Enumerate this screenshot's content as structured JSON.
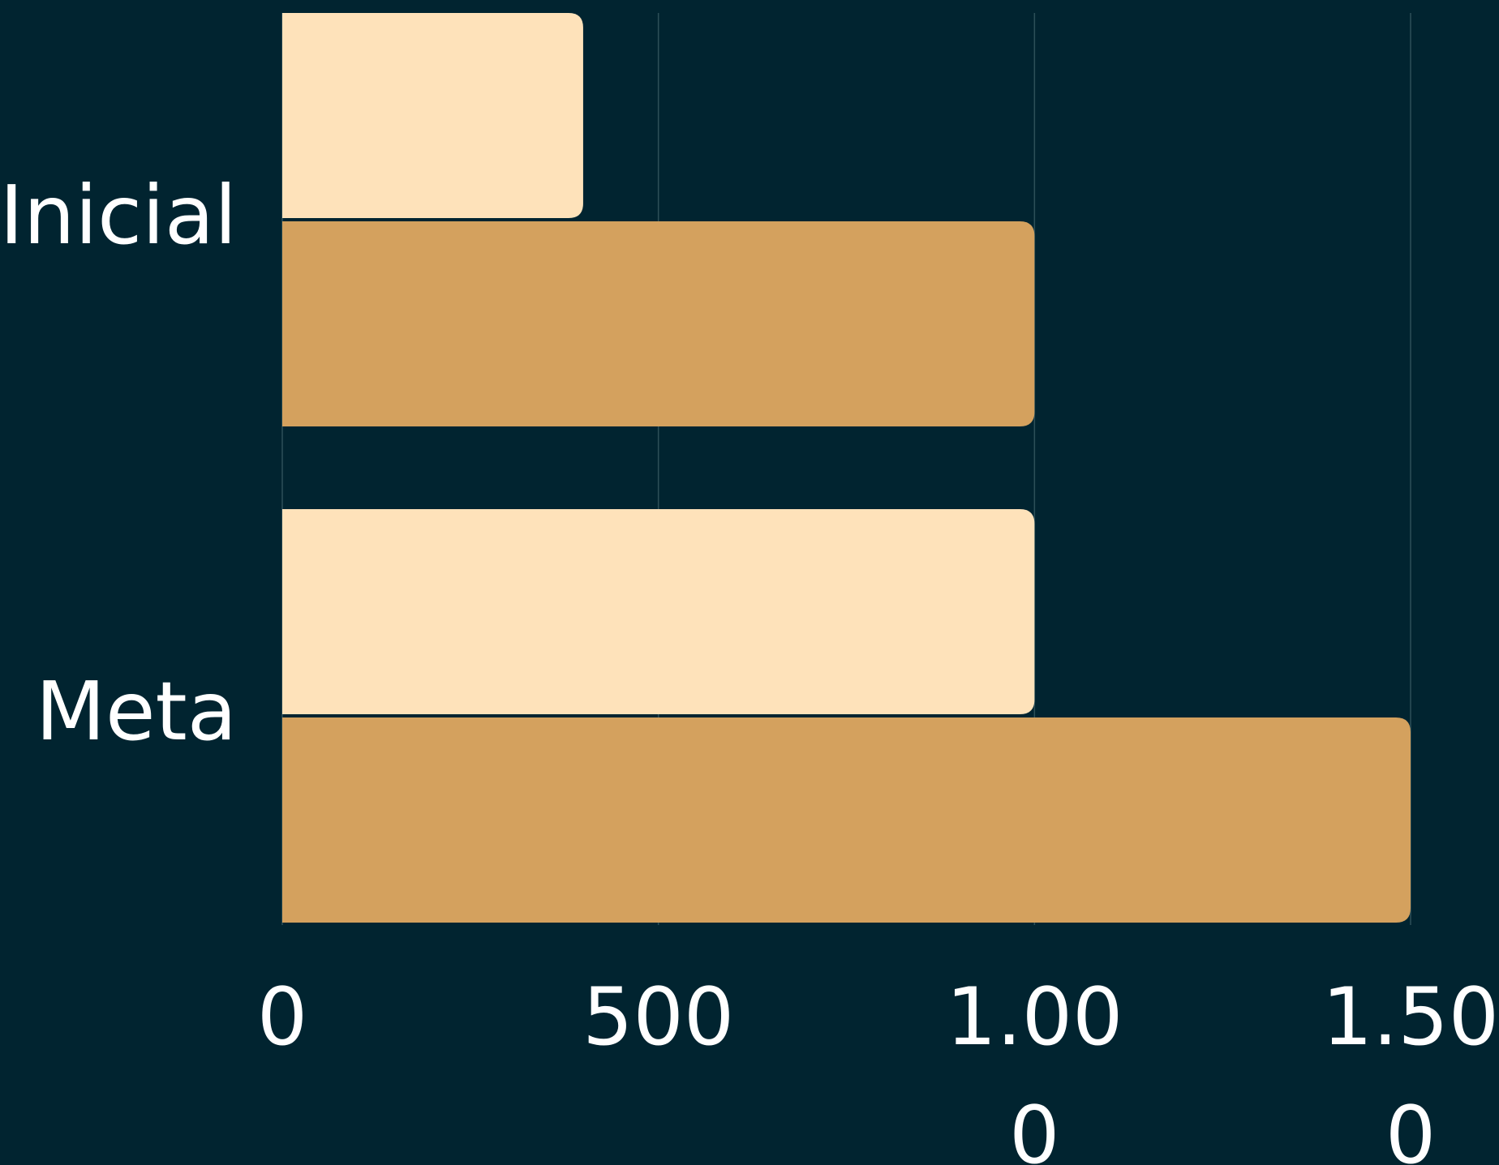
{
  "chart_data": {
    "type": "bar",
    "orientation": "horizontal",
    "categories": [
      "Inicial",
      "Meta"
    ],
    "series": [
      {
        "color": "#fee2ba",
        "values": [
          400,
          1000
        ]
      },
      {
        "color": "#d4a15e",
        "values": [
          1000,
          1500
        ]
      }
    ],
    "xlim": [
      0,
      1500
    ],
    "x_ticks": [
      {
        "value": 0,
        "label": "0"
      },
      {
        "value": 500,
        "label": "500"
      },
      {
        "value": 1000,
        "label": "1.000"
      },
      {
        "value": 1500,
        "label": "1.500"
      }
    ],
    "grid": "vertical",
    "legend": "none",
    "colors": {
      "background": "#012430",
      "grid": "#2d4f58",
      "text": "#ffffff"
    }
  }
}
